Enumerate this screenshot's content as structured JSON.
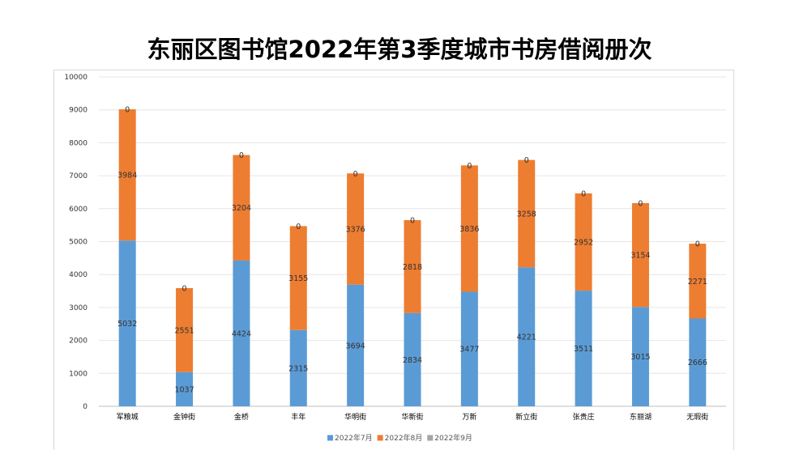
{
  "chart_data": {
    "type": "bar",
    "stacked": true,
    "title": "东丽区图书馆2022年第3季度城市书房借阅册次",
    "categories": [
      "军粮城",
      "金钟街",
      "金桥",
      "丰年",
      "华明街",
      "华新街",
      "万新",
      "新立街",
      "张贵庄",
      "东丽湖",
      "无瑕街"
    ],
    "series": [
      {
        "name": "2022年7月",
        "color": "#5b9bd5",
        "values": [
          5032,
          1037,
          4424,
          2315,
          3694,
          2834,
          3477,
          4221,
          3511,
          3015,
          2666
        ]
      },
      {
        "name": "2022年8月",
        "color": "#ed7d31",
        "values": [
          3984,
          2551,
          3204,
          3155,
          3376,
          2818,
          3836,
          3258,
          2952,
          3154,
          2271
        ]
      },
      {
        "name": "2022年9月",
        "color": "#a5a5a5",
        "values": [
          0,
          0,
          0,
          0,
          0,
          0,
          0,
          0,
          0,
          0,
          0
        ]
      }
    ],
    "ylim": [
      0,
      10000
    ],
    "yticks": [
      0,
      1000,
      2000,
      3000,
      4000,
      5000,
      6000,
      7000,
      8000,
      9000,
      10000
    ],
    "xlabel": "",
    "ylabel": "",
    "grid": true,
    "legend_position": "bottom"
  }
}
